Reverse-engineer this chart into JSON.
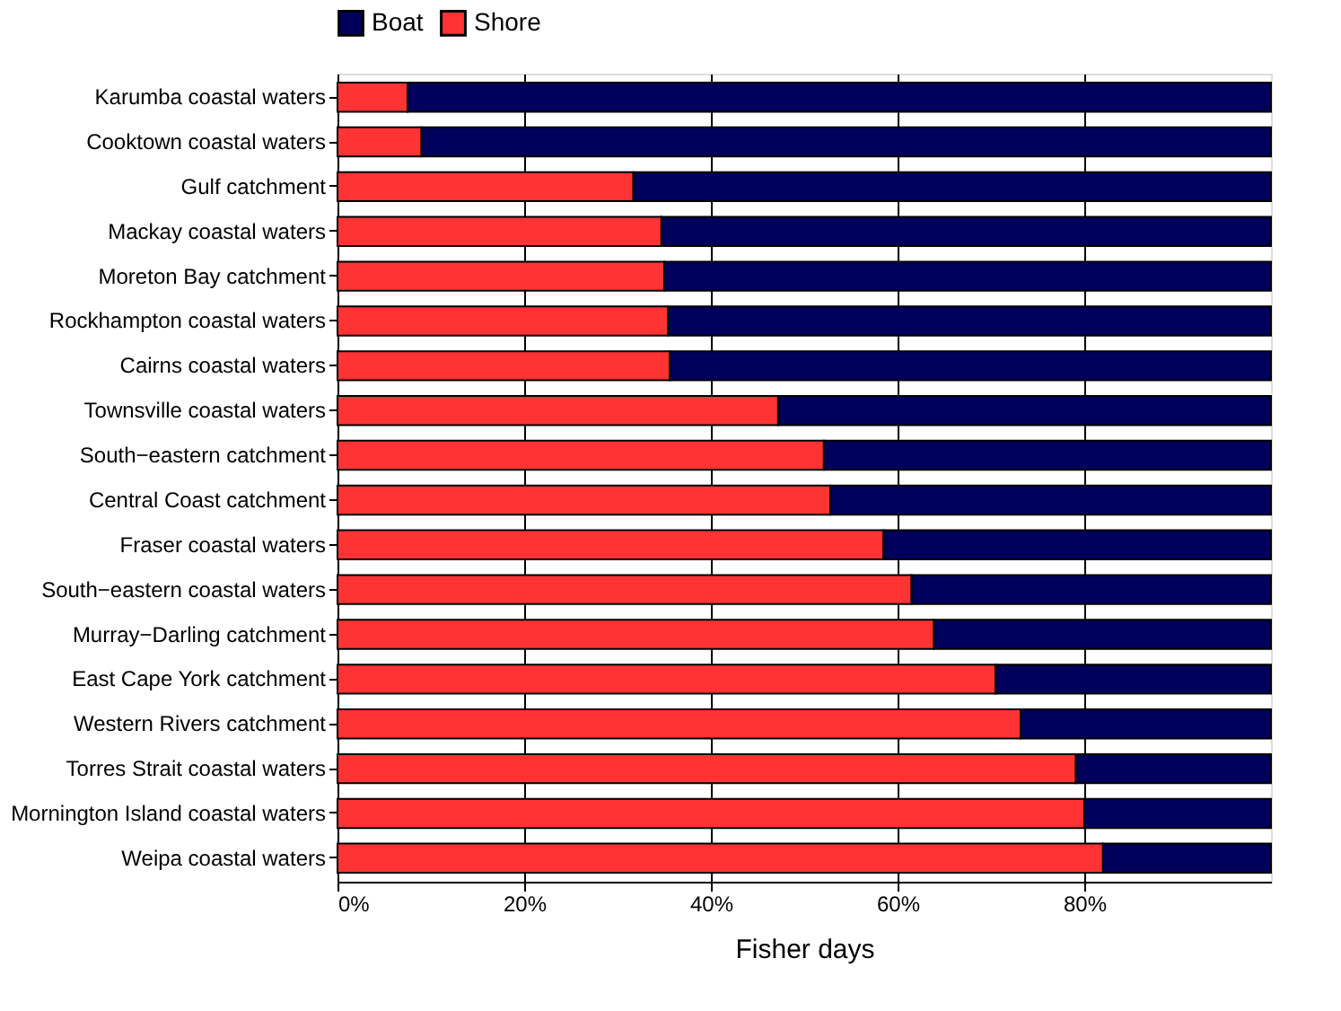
{
  "chart_data": {
    "type": "bar",
    "orientation": "horizontal",
    "stacked": true,
    "xlabel": "Fisher days",
    "legend": "top",
    "grid": "x",
    "categories": [
      "Karumba coastal waters",
      "Cooktown coastal waters",
      "Gulf catchment",
      "Mackay coastal waters",
      "Moreton Bay catchment",
      "Rockhampton coastal waters",
      "Cairns coastal waters",
      "Townsville coastal waters",
      "South−eastern catchment",
      "Central Coast catchment",
      "Fraser coastal waters",
      "South−eastern coastal waters",
      "Murray−Darling catchment",
      "East Cape York catchment",
      "Western Rivers catchment",
      "Torres Strait coastal waters",
      "Mornington Island coastal waters",
      "Weipa coastal waters"
    ],
    "series": [
      {
        "name": "Shore",
        "color": "#ff3333",
        "values": [
          7.5,
          9,
          31.7,
          34.7,
          35,
          35.4,
          35.6,
          47.2,
          52.1,
          52.8,
          58.5,
          61.5,
          63.9,
          70.5,
          73.2,
          79.1,
          80,
          82
        ]
      },
      {
        "name": "Boat",
        "color": "#00005c",
        "values": [
          92.5,
          91,
          68.3,
          65.3,
          65,
          64.6,
          64.4,
          52.8,
          47.9,
          47.2,
          41.5,
          38.5,
          36.1,
          29.5,
          26.8,
          20.9,
          20,
          18
        ]
      }
    ],
    "xlim": [
      0,
      100
    ],
    "xticks": [
      {
        "value": 0,
        "label": "0%"
      },
      {
        "value": 20,
        "label": "20%"
      },
      {
        "value": 40,
        "label": "40%"
      },
      {
        "value": 60,
        "label": "60%"
      },
      {
        "value": 80,
        "label": "80%"
      }
    ]
  }
}
